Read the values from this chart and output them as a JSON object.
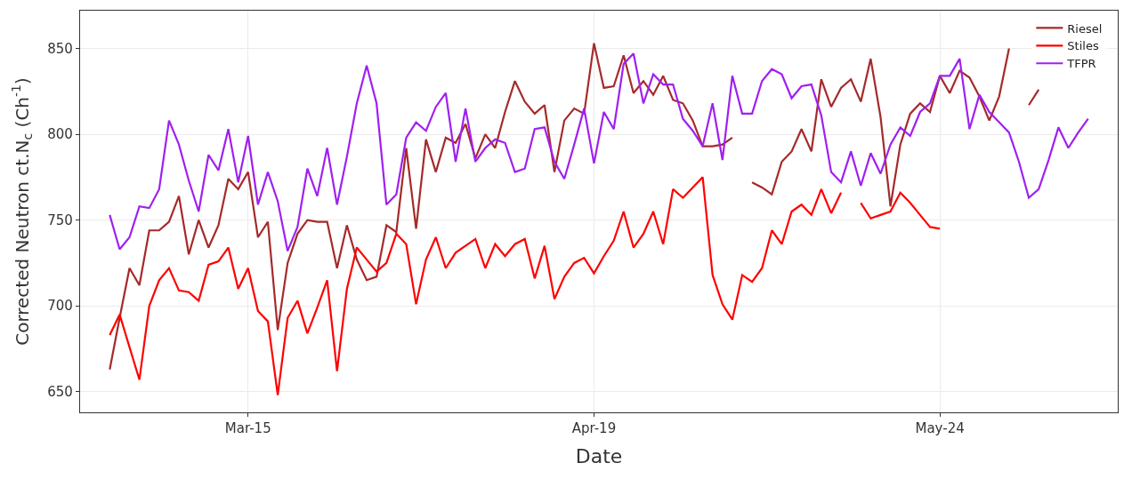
{
  "chart_data": {
    "type": "line",
    "xlabel": "Date",
    "ylabel": "Corrected Neutron ct.N$_{c}$ (Ch$^{-1}$)",
    "x": [
      "--03-01",
      "--03-02",
      "--03-03",
      "--03-04",
      "--03-05",
      "--03-06",
      "--03-07",
      "--03-08",
      "--03-09",
      "--03-10",
      "--03-11",
      "--03-12",
      "--03-13",
      "--03-14",
      "--03-15",
      "--03-16",
      "--03-17",
      "--03-18",
      "--03-19",
      "--03-20",
      "--03-21",
      "--03-22",
      "--03-23",
      "--03-24",
      "--03-25",
      "--03-26",
      "--03-27",
      "--03-28",
      "--03-29",
      "--03-30",
      "--03-31",
      "--04-01",
      "--04-02",
      "--04-03",
      "--04-04",
      "--04-05",
      "--04-06",
      "--04-07",
      "--04-08",
      "--04-09",
      "--04-10",
      "--04-11",
      "--04-12",
      "--04-13",
      "--04-14",
      "--04-15",
      "--04-16",
      "--04-17",
      "--04-18",
      "--04-19",
      "--04-20",
      "--04-21",
      "--04-22",
      "--04-23",
      "--04-24",
      "--04-25",
      "--04-26",
      "--04-27",
      "--04-28",
      "--04-29",
      "--04-30",
      "--05-01",
      "--05-02",
      "--05-03",
      "--05-04",
      "--05-05",
      "--05-06",
      "--05-07",
      "--05-08",
      "--05-09",
      "--05-10",
      "--05-11",
      "--05-12",
      "--05-13",
      "--05-14",
      "--05-15",
      "--05-16",
      "--05-17",
      "--05-18",
      "--05-19",
      "--05-20",
      "--05-21",
      "--05-22",
      "--05-23",
      "--05-24",
      "--05-25",
      "--05-26",
      "--05-27",
      "--05-28",
      "--05-29",
      "--05-30",
      "--05-31",
      "--06-01",
      "--06-02",
      "--06-03",
      "--06-04",
      "--06-05",
      "--06-06",
      "--06-07",
      "--06-08"
    ],
    "series": [
      {
        "name": "Riesel",
        "color": "#a52a2a",
        "values": [
          663,
          693,
          722,
          712,
          744,
          744,
          749,
          764,
          730,
          750,
          734,
          747,
          774,
          768,
          778,
          740,
          749,
          686,
          725,
          742,
          750,
          749,
          749,
          722,
          747,
          727,
          715,
          717,
          747,
          743,
          792,
          745,
          797,
          778,
          798,
          795,
          806,
          786,
          800,
          792,
          813,
          831,
          819,
          812,
          817,
          778,
          808,
          815,
          812,
          853,
          827,
          828,
          846,
          824,
          831,
          823,
          834,
          820,
          818,
          808,
          793,
          793,
          794,
          798,
          null,
          772,
          769,
          765,
          784,
          790,
          803,
          790,
          832,
          816,
          827,
          832,
          819,
          844,
          810,
          758,
          794,
          812,
          818,
          813,
          834,
          824,
          837,
          833,
          822,
          808,
          822,
          850,
          null,
          817,
          826,
          null,
          null,
          null,
          null,
          null
        ]
      },
      {
        "name": "Stiles",
        "color": "#ff0000",
        "values": [
          683,
          695,
          676,
          657,
          700,
          715,
          722,
          709,
          708,
          703,
          724,
          726,
          734,
          710,
          722,
          697,
          691,
          648,
          693,
          703,
          684,
          699,
          715,
          662,
          710,
          734,
          727,
          720,
          725,
          742,
          736,
          701,
          727,
          740,
          722,
          731,
          735,
          739,
          722,
          736,
          729,
          736,
          739,
          716,
          735,
          704,
          717,
          725,
          728,
          719,
          729,
          738,
          755,
          734,
          742,
          755,
          736,
          768,
          763,
          769,
          775,
          718,
          701,
          692,
          718,
          714,
          722,
          744,
          736,
          755,
          759,
          753,
          768,
          754,
          766,
          null,
          760,
          751,
          753,
          755,
          766,
          760,
          753,
          746,
          745,
          null,
          null,
          null,
          null,
          null,
          null,
          null,
          null,
          null,
          null,
          null,
          null,
          null,
          null,
          null
        ]
      },
      {
        "name": "TFPR",
        "color": "#a020f0",
        "values": [
          753,
          733,
          740,
          758,
          757,
          768,
          808,
          794,
          773,
          755,
          788,
          779,
          803,
          772,
          799,
          759,
          778,
          761,
          732,
          746,
          780,
          764,
          792,
          759,
          787,
          818,
          840,
          818,
          759,
          765,
          798,
          807,
          802,
          816,
          824,
          784,
          815,
          784,
          792,
          797,
          795,
          778,
          780,
          803,
          804,
          784,
          774,
          794,
          815,
          783,
          813,
          803,
          841,
          847,
          818,
          835,
          829,
          829,
          809,
          802,
          793,
          818,
          785,
          834,
          812,
          812,
          831,
          838,
          835,
          821,
          828,
          829,
          811,
          778,
          772,
          790,
          770,
          789,
          777,
          794,
          804,
          799,
          813,
          818,
          834,
          834,
          844,
          803,
          823,
          813,
          807,
          801,
          784,
          763,
          768,
          785,
          804,
          792,
          801,
          809
        ]
      }
    ],
    "xlim": [
      "--02-26",
      "--06-11"
    ],
    "xticks": [
      {
        "value": "--03-15",
        "label": "Mar-15"
      },
      {
        "value": "--04-19",
        "label": "Apr-19"
      },
      {
        "value": "--05-24",
        "label": "May-24"
      }
    ],
    "ylim": [
      638,
      872
    ],
    "yticks": [
      650,
      700,
      750,
      800,
      850
    ],
    "grid": true,
    "legend": "top right",
    "marker": "none",
    "line_style": "solid"
  }
}
